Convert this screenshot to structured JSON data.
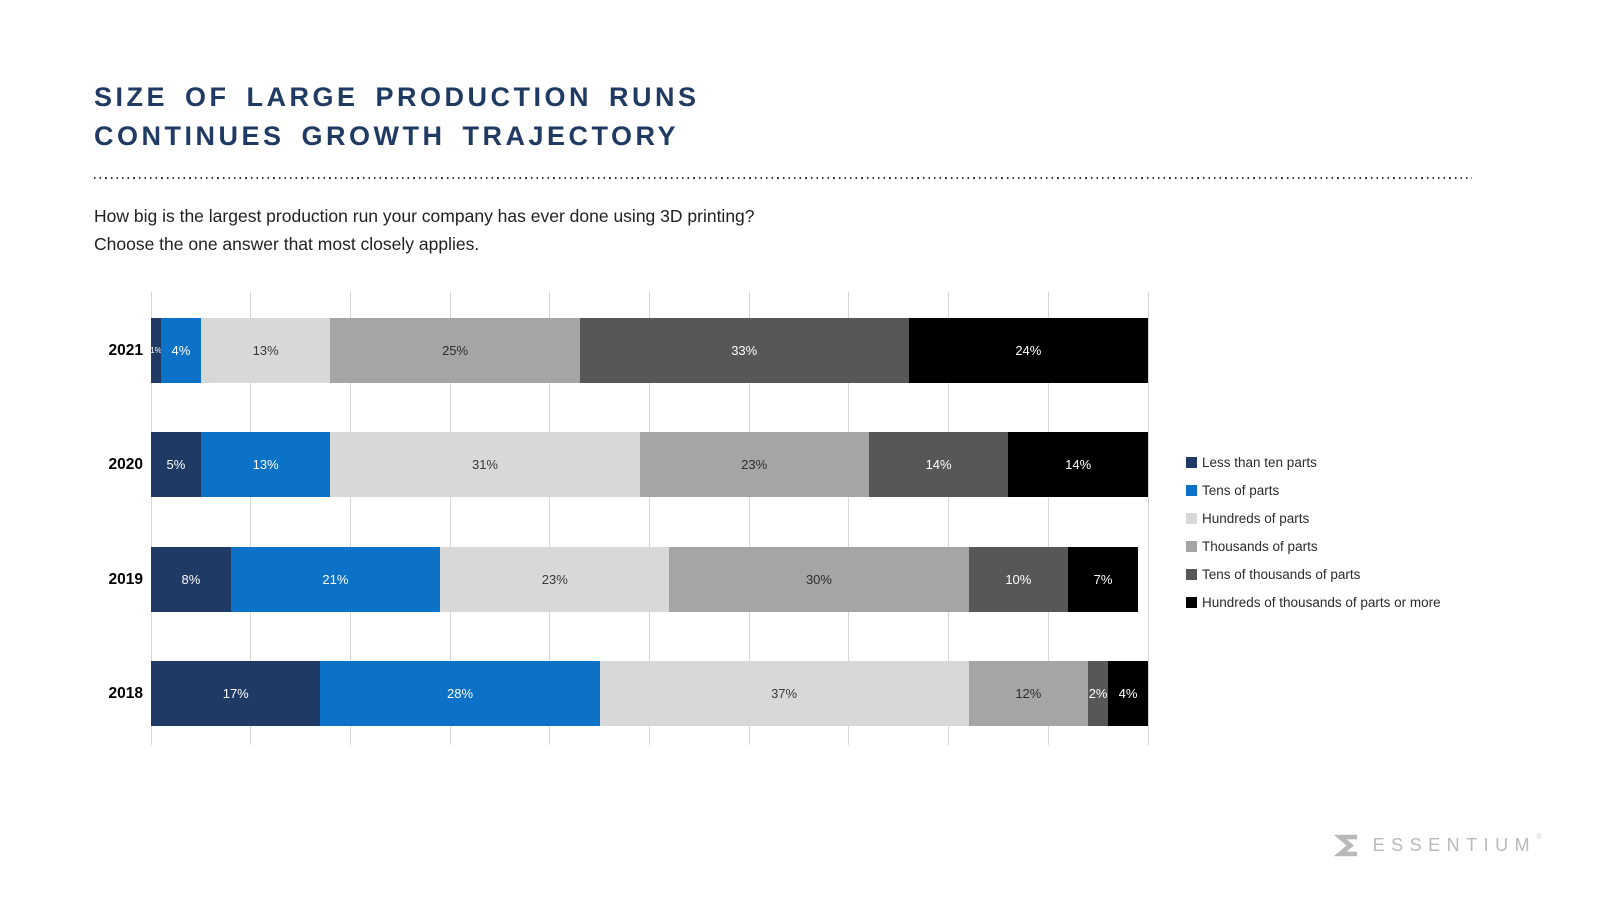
{
  "header": {
    "title_line1": "SIZE OF LARGE PRODUCTION RUNS",
    "title_line2": "CONTINUES GROWTH TRAJECTORY",
    "title_color": "#1F3B63"
  },
  "question": {
    "line1": "How big is the largest production run your company has ever done using 3D printing?",
    "line2": "Choose the one answer that most closely applies."
  },
  "chart_data": {
    "type": "bar",
    "orientation": "horizontal-stacked",
    "categories": [
      "2021",
      "2020",
      "2019",
      "2018"
    ],
    "series": [
      {
        "name": "Less than ten parts",
        "color": "#1F3A64",
        "label_color": "#FFFFFF",
        "values": [
          1,
          5,
          8,
          17
        ]
      },
      {
        "name": "Tens of parts",
        "color": "#0B72C8",
        "label_color": "#FFFFFF",
        "values": [
          4,
          13,
          21,
          28
        ]
      },
      {
        "name": "Hundreds of parts",
        "color": "#D8D8D8",
        "label_color": "#3a3a3a",
        "values": [
          13,
          31,
          23,
          37
        ]
      },
      {
        "name": "Thousands of parts",
        "color": "#A5A5A5",
        "label_color": "#2e2e2e",
        "values": [
          25,
          23,
          30,
          12
        ]
      },
      {
        "name": "Tens of thousands of parts",
        "color": "#575757",
        "label_color": "#FFFFFF",
        "values": [
          33,
          14,
          10,
          2
        ]
      },
      {
        "name": "Hundreds of thousands of parts or more",
        "color": "#000000",
        "label_color": "#FFFFFF",
        "values": [
          24,
          14,
          7,
          4
        ]
      }
    ],
    "value_suffix": "%",
    "xlim": [
      0,
      100
    ],
    "gridline_step": 10,
    "gridline_color": "#D6D6D6",
    "legend_position": "right",
    "title": "SIZE OF LARGE PRODUCTION RUNS CONTINUES GROWTH TRAJECTORY",
    "subtitle": "How big is the largest production run your company has ever done using 3D printing? Choose the one answer that most closely applies."
  },
  "logo": {
    "text": "ESSENTIUM",
    "mark": "®"
  }
}
